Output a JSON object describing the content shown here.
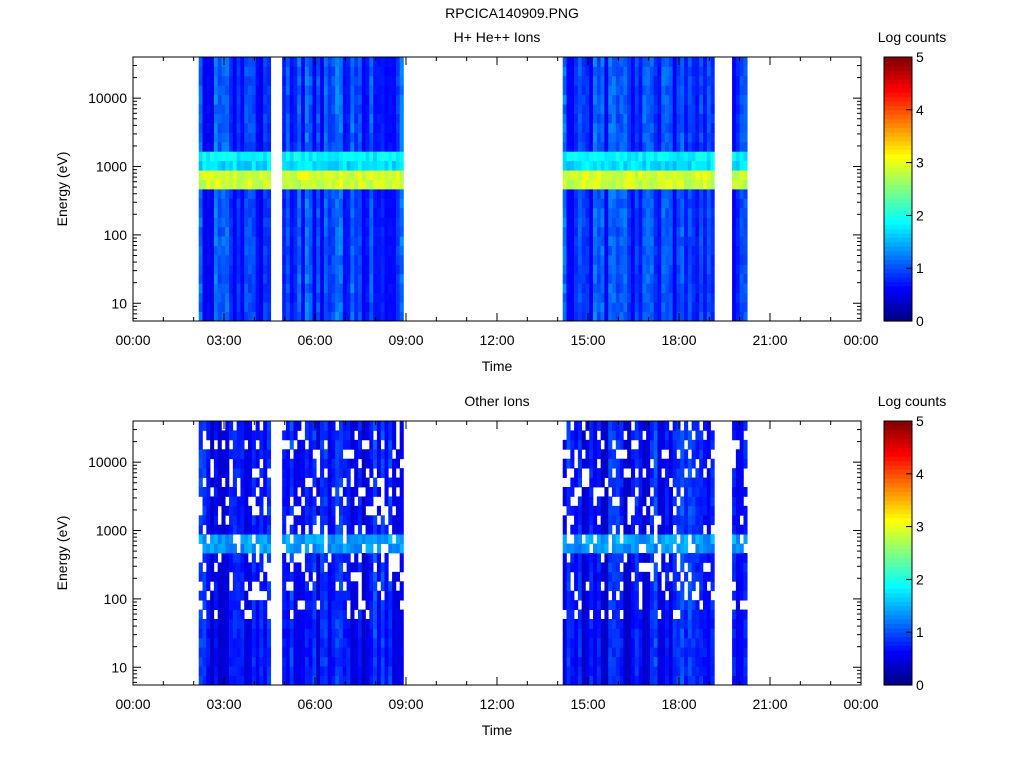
{
  "figure_title": "RPCICA140909.PNG",
  "chart_data": [
    {
      "type": "heatmap",
      "title": "H+ He++ Ions",
      "xlabel": "Time",
      "ylabel": "Energy (eV)",
      "y_scale": "log",
      "ylim": [
        5.5,
        40000
      ],
      "x_range": [
        "00:00",
        "24:00"
      ],
      "x_ticks": [
        "00:00",
        "03:00",
        "06:00",
        "09:00",
        "12:00",
        "15:00",
        "18:00",
        "21:00",
        "00:00"
      ],
      "y_ticks": [
        "10",
        "100",
        "1000",
        "10000"
      ],
      "colorbar": {
        "label": "Log counts",
        "min": 0,
        "max": 5,
        "ticks": [
          "0",
          "1",
          "2",
          "3",
          "4",
          "5"
        ]
      },
      "data_gaps": [
        [
          "09:00",
          "14:10"
        ],
        [
          "20:15",
          "24:00"
        ]
      ],
      "active_intervals": [
        [
          "02:10",
          "04:30"
        ],
        [
          "04:55",
          "08:50"
        ],
        [
          "14:10",
          "19:05"
        ],
        [
          "19:45",
          "20:15"
        ]
      ],
      "features": [
        {
          "energy_eV": 650,
          "log_counts": 3.3,
          "note": "intense band"
        },
        {
          "energy_eV": 1250,
          "log_counts": 2.2,
          "note": "secondary band"
        }
      ],
      "background_log_counts": 0.5
    },
    {
      "type": "heatmap",
      "title": "Other Ions",
      "xlabel": "Time",
      "ylabel": "Energy (eV)",
      "y_scale": "log",
      "ylim": [
        5.5,
        40000
      ],
      "x_range": [
        "00:00",
        "24:00"
      ],
      "x_ticks": [
        "00:00",
        "03:00",
        "06:00",
        "09:00",
        "12:00",
        "15:00",
        "18:00",
        "21:00",
        "00:00"
      ],
      "y_ticks": [
        "10",
        "100",
        "1000",
        "10000"
      ],
      "colorbar": {
        "label": "Log counts",
        "min": 0,
        "max": 5,
        "ticks": [
          "0",
          "1",
          "2",
          "3",
          "4",
          "5"
        ]
      },
      "data_gaps": [
        [
          "09:00",
          "14:10"
        ],
        [
          "20:15",
          "24:00"
        ]
      ],
      "active_intervals": [
        [
          "02:10",
          "04:30"
        ],
        [
          "04:55",
          "08:50"
        ],
        [
          "14:10",
          "19:05"
        ],
        [
          "19:45",
          "20:15"
        ]
      ],
      "features": [
        {
          "energy_eV": 650,
          "log_counts": 1.8,
          "note": "band"
        }
      ],
      "background_log_counts": 0.3
    }
  ]
}
